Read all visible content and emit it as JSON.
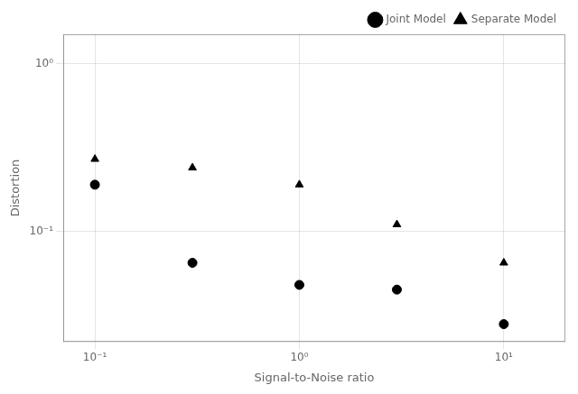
{
  "chart_data": {
    "type": "scatter",
    "x_label": "Signal-to-Noise ratio",
    "y_label": "Distortion",
    "x": [
      0.1,
      0.3,
      1.0,
      3.0,
      10.0
    ],
    "series": [
      {
        "name": "Joint Model",
        "color": "black",
        "marker": "circle",
        "values": [
          0.19,
          0.065,
          0.048,
          0.045,
          0.028
        ]
      },
      {
        "name": "Separate Model",
        "color": "black",
        "marker": "triangle",
        "values": [
          0.27,
          0.24,
          0.19,
          0.11,
          0.065
        ]
      }
    ],
    "log": true,
    "xlim": [
      0.07,
      20.0
    ],
    "ylim": [
      0.022,
      1.5
    ],
    "xticks": [
      {
        "value": 0.1,
        "label": "10⁻¹"
      },
      {
        "value": 1.0,
        "label": "10⁰"
      },
      {
        "value": 10.0,
        "label": "10¹"
      }
    ],
    "yticks": [
      {
        "value": 0.1,
        "label": "10⁻¹"
      },
      {
        "value": 1.0,
        "label": "10⁰"
      }
    ],
    "grid": true,
    "legend": "upper right"
  }
}
